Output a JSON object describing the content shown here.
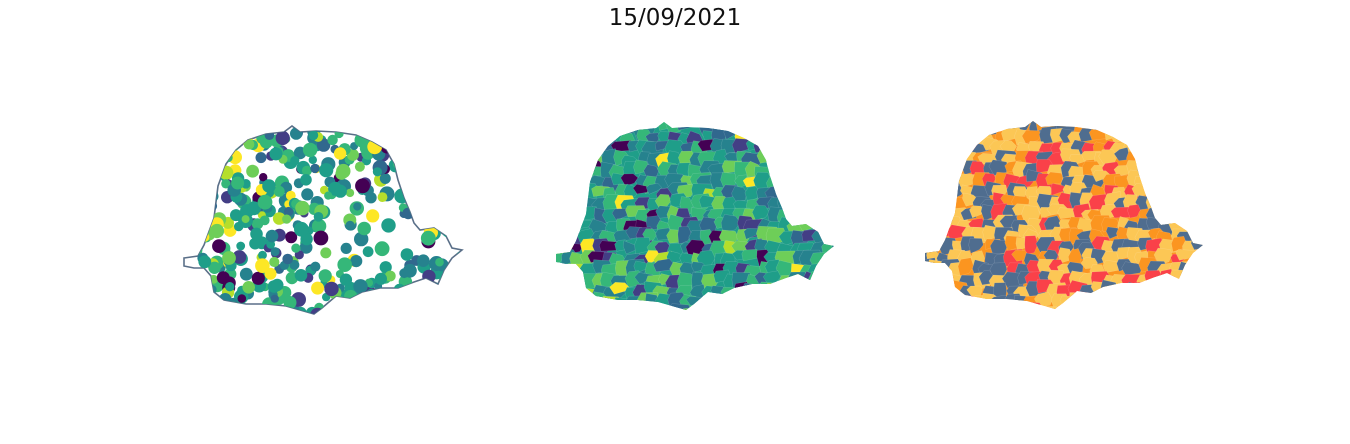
{
  "title": "15/09/2021",
  "colors": {
    "outline": "#5a6f88",
    "viridis": [
      "#440154",
      "#433e85",
      "#31688e",
      "#26828e",
      "#1f9e89",
      "#35b779",
      "#6ece58",
      "#b5de2b",
      "#fde725"
    ],
    "classes": [
      "#4f6d8f",
      "#fcc755",
      "#fb9520",
      "#fa4149"
    ]
  },
  "panels": [
    {
      "id": "points",
      "style": "proportional-points",
      "palette": "viridis"
    },
    {
      "id": "choropleth",
      "style": "choropleth",
      "palette": "viridis"
    },
    {
      "id": "classes",
      "style": "categorical-choropleth",
      "palette": "classes"
    }
  ]
}
